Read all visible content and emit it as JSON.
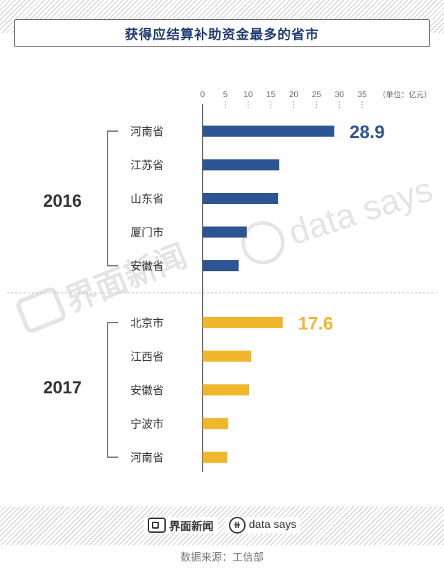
{
  "title": "获得应结算补助资金最多的省市",
  "unit_label": "（单位：亿元）",
  "source": "数据来源：工信部",
  "footer": {
    "jiemian_logo_text": "界面新闻",
    "datasays_logo_text": "data says"
  },
  "watermarks": {
    "jiemian_text": "界面新闻",
    "datasays_text": "data says"
  },
  "colors": {
    "series_2016": "#2e5593",
    "series_2017": "#f0b62c",
    "title": "#1f3c73"
  },
  "icons": [
    "jiemian-logo-icon",
    "datasays-logo-icon"
  ],
  "chart_data": {
    "type": "bar",
    "orientation": "horizontal",
    "title": "获得应结算补助资金最多的省市",
    "unit": "（单位：亿元）",
    "xlim": [
      0,
      35
    ],
    "xticks": [
      0,
      5,
      10,
      15,
      20,
      25,
      30,
      35
    ],
    "grid": "dashed tick marks under axis labels",
    "groups": [
      {
        "name": "2016",
        "categories": [
          "河南省",
          "江苏省",
          "山东省",
          "厦门市",
          "安徽省"
        ],
        "values": [
          28.9,
          16.8,
          16.6,
          9.7,
          7.9
        ],
        "highlight_label": "28.9"
      },
      {
        "name": "2017",
        "categories": [
          "北京市",
          "江西省",
          "安徽省",
          "宁波市",
          "河南省"
        ],
        "values": [
          17.6,
          10.7,
          10.2,
          5.6,
          5.4
        ],
        "highlight_label": "17.6"
      }
    ]
  }
}
